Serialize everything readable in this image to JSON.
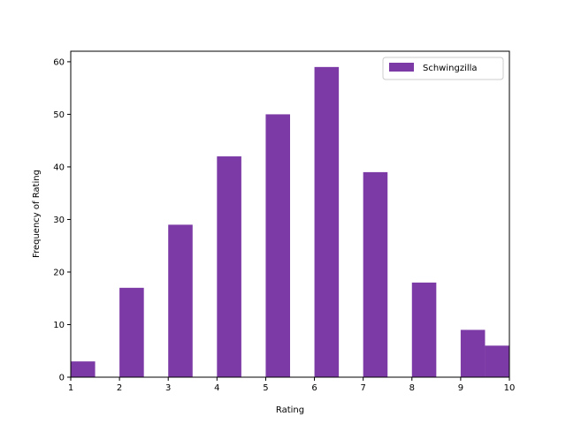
{
  "chart_data": {
    "type": "bar",
    "title": "",
    "xlabel": "Rating",
    "ylabel": "Frequency of Rating",
    "xlim": [
      1,
      10
    ],
    "ylim": [
      0,
      62
    ],
    "x_ticks": [
      "1",
      "2",
      "3",
      "4",
      "5",
      "6",
      "7",
      "8",
      "9",
      "10"
    ],
    "y_ticks": [
      "0",
      "10",
      "20",
      "30",
      "40",
      "50",
      "60"
    ],
    "grid": false,
    "legend_position": "top-right",
    "series": [
      {
        "name": "Schwingzilla",
        "color": "#7b3aa5",
        "bins": [
          {
            "start": 1.0,
            "end": 1.5,
            "value": 3
          },
          {
            "start": 2.0,
            "end": 2.5,
            "value": 17
          },
          {
            "start": 3.0,
            "end": 3.5,
            "value": 29
          },
          {
            "start": 4.0,
            "end": 4.5,
            "value": 42
          },
          {
            "start": 5.0,
            "end": 5.5,
            "value": 50
          },
          {
            "start": 6.0,
            "end": 6.5,
            "value": 59
          },
          {
            "start": 7.0,
            "end": 7.5,
            "value": 39
          },
          {
            "start": 8.0,
            "end": 8.5,
            "value": 18
          },
          {
            "start": 9.0,
            "end": 9.5,
            "value": 9
          },
          {
            "start": 9.5,
            "end": 10.0,
            "value": 6
          }
        ]
      }
    ]
  }
}
